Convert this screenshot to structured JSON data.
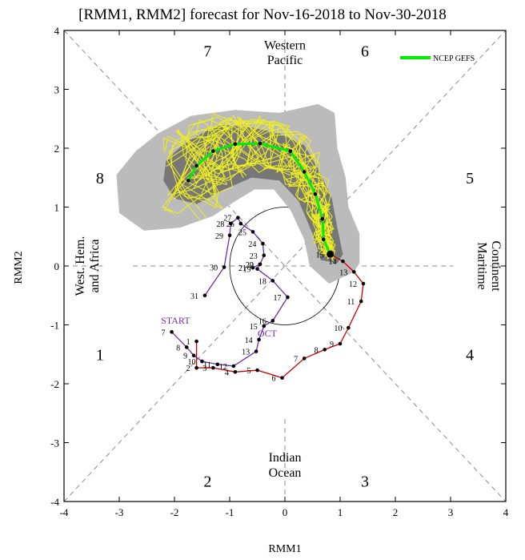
{
  "chart_data": {
    "type": "scatter",
    "title": "[RMM1, RMM2] forecast for Nov-16-2018 to Nov-30-2018",
    "xlabel": "RMM1",
    "ylabel": "RMM2",
    "xlim": [
      -4,
      4
    ],
    "ylim": [
      -4,
      4
    ],
    "x_ticks": [
      "-4",
      "-3",
      "-2",
      "-1",
      "0",
      "1",
      "2",
      "3",
      "4"
    ],
    "y_ticks": [
      "-4",
      "-3",
      "-2",
      "-1",
      "0",
      "1",
      "2",
      "3",
      "4"
    ],
    "phase_numbers": [
      {
        "label": "1",
        "x": -3.35,
        "y": -1.5
      },
      {
        "label": "2",
        "x": -1.4,
        "y": -3.65
      },
      {
        "label": "3",
        "x": 1.45,
        "y": -3.65
      },
      {
        "label": "4",
        "x": 3.35,
        "y": -1.5
      },
      {
        "label": "5",
        "x": 3.35,
        "y": 1.5
      },
      {
        "label": "6",
        "x": 1.45,
        "y": 3.65
      },
      {
        "label": "7",
        "x": -1.4,
        "y": 3.65
      },
      {
        "label": "8",
        "x": -3.35,
        "y": 1.5
      }
    ],
    "region_labels": {
      "top": [
        "Western",
        "Pacific"
      ],
      "bottom": [
        "Indian",
        "Ocean"
      ],
      "left": [
        "West. Hem.",
        "and Africa"
      ],
      "right": [
        "Maritime",
        "Continent"
      ]
    },
    "legend": {
      "label": "NCEP GEFS",
      "color": "#00ee00",
      "position": "top-right"
    },
    "start_label": "START",
    "month_labels": [
      {
        "label": "OCT",
        "x": -0.32,
        "y": -1.2
      }
    ],
    "observed_october": {
      "name": "October",
      "color": "#6a2fb0",
      "points": [
        {
          "day": "7",
          "x": -2.05,
          "y": -1.12
        },
        {
          "day": "8",
          "x": -1.78,
          "y": -1.38
        },
        {
          "day": "9",
          "x": -1.65,
          "y": -1.52
        },
        {
          "day": "10",
          "x": -1.5,
          "y": -1.62
        },
        {
          "day": "11",
          "x": -1.22,
          "y": -1.67
        },
        {
          "day": "12",
          "x": -0.93,
          "y": -1.7
        },
        {
          "day": "13",
          "x": -0.52,
          "y": -1.45
        },
        {
          "day": "14",
          "x": -0.47,
          "y": -1.25
        },
        {
          "day": "15",
          "x": -0.38,
          "y": -1.02
        },
        {
          "day": "16",
          "x": -0.22,
          "y": -0.93
        },
        {
          "day": "17",
          "x": 0.05,
          "y": -0.53
        },
        {
          "day": "18",
          "x": -0.22,
          "y": -0.25
        },
        {
          "day": "19",
          "x": -0.5,
          "y": -0.05
        },
        {
          "day": "20",
          "x": -0.45,
          "y": 0.03
        },
        {
          "day": "21",
          "x": -0.58,
          "y": -0.03
        },
        {
          "day": "22",
          "x": -0.45,
          "y": 0.03
        },
        {
          "day": "23",
          "x": -0.38,
          "y": 0.18
        },
        {
          "day": "24",
          "x": -0.4,
          "y": 0.38
        },
        {
          "day": "25",
          "x": -0.58,
          "y": 0.58
        },
        {
          "day": "26",
          "x": -0.8,
          "y": 0.72
        },
        {
          "day": "27",
          "x": -0.85,
          "y": 0.82
        },
        {
          "day": "28",
          "x": -0.98,
          "y": 0.72
        },
        {
          "day": "29",
          "x": -1.0,
          "y": 0.52
        },
        {
          "day": "30",
          "x": -1.1,
          "y": -0.02
        },
        {
          "day": "31",
          "x": -1.45,
          "y": -0.5
        }
      ]
    },
    "observed_november": {
      "name": "November",
      "color": "#cc0000",
      "points": [
        {
          "day": "1",
          "x": -1.6,
          "y": -1.28
        },
        {
          "day": "2",
          "x": -1.6,
          "y": -1.73
        },
        {
          "day": "3",
          "x": -1.3,
          "y": -1.73
        },
        {
          "day": "4",
          "x": -0.9,
          "y": -1.8
        },
        {
          "day": "5",
          "x": -0.5,
          "y": -1.77
        },
        {
          "day": "6",
          "x": -0.05,
          "y": -1.9
        },
        {
          "day": "7",
          "x": 0.35,
          "y": -1.57
        },
        {
          "day": "8",
          "x": 0.72,
          "y": -1.42
        },
        {
          "day": "9",
          "x": 1.0,
          "y": -1.32
        },
        {
          "day": "10",
          "x": 1.15,
          "y": -1.05
        },
        {
          "day": "11",
          "x": 1.38,
          "y": -0.6
        },
        {
          "day": "12",
          "x": 1.42,
          "y": -0.3
        },
        {
          "day": "13",
          "x": 1.25,
          "y": -0.1
        },
        {
          "day": "14",
          "x": 1.05,
          "y": 0.08
        },
        {
          "day": "15",
          "x": 0.82,
          "y": 0.2
        }
      ]
    },
    "ensemble_mean": {
      "name": "NCEP GEFS ensemble mean",
      "color": "#00ee00",
      "points": [
        {
          "x": 0.82,
          "y": 0.2
        },
        {
          "x": 0.7,
          "y": 0.45
        },
        {
          "x": 0.68,
          "y": 0.8
        },
        {
          "x": 0.55,
          "y": 1.22
        },
        {
          "x": 0.35,
          "y": 1.6
        },
        {
          "x": 0.1,
          "y": 1.95
        },
        {
          "x": -0.45,
          "y": 2.08
        },
        {
          "x": -0.9,
          "y": 2.07
        },
        {
          "x": -1.3,
          "y": 1.95
        },
        {
          "x": -1.6,
          "y": 1.7
        },
        {
          "x": -1.75,
          "y": 1.45
        }
      ]
    },
    "outer_spread": {
      "color": "#bbbbbb",
      "polygon": [
        [
          -3.05,
          1.55
        ],
        [
          -2.7,
          1.95
        ],
        [
          -2.3,
          2.25
        ],
        [
          -1.7,
          2.55
        ],
        [
          -0.9,
          2.65
        ],
        [
          -0.1,
          2.6
        ],
        [
          0.6,
          2.75
        ],
        [
          0.9,
          2.6
        ],
        [
          0.95,
          2.0
        ],
        [
          1.1,
          1.5
        ],
        [
          1.15,
          1.0
        ],
        [
          1.35,
          0.55
        ],
        [
          1.35,
          0.05
        ],
        [
          1.25,
          -0.1
        ],
        [
          0.8,
          -0.3
        ],
        [
          0.45,
          0.0
        ],
        [
          0.35,
          0.45
        ],
        [
          0.1,
          0.95
        ],
        [
          -0.2,
          1.3
        ],
        [
          -0.55,
          1.3
        ],
        [
          -0.9,
          1.1
        ],
        [
          -1.3,
          0.85
        ],
        [
          -1.9,
          0.65
        ],
        [
          -2.55,
          0.6
        ],
        [
          -3.0,
          0.9
        ]
      ]
    },
    "inner_spread": {
      "color": "#777777",
      "polygon": [
        [
          -2.15,
          1.8
        ],
        [
          -1.8,
          2.1
        ],
        [
          -1.2,
          2.4
        ],
        [
          -0.6,
          2.35
        ],
        [
          -0.1,
          2.25
        ],
        [
          0.35,
          2.05
        ],
        [
          0.6,
          1.65
        ],
        [
          0.85,
          1.15
        ],
        [
          0.95,
          0.65
        ],
        [
          1.05,
          0.2
        ],
        [
          0.95,
          0.05
        ],
        [
          0.65,
          0.1
        ],
        [
          0.5,
          0.55
        ],
        [
          0.25,
          1.1
        ],
        [
          -0.1,
          1.45
        ],
        [
          -0.6,
          1.5
        ],
        [
          -1.1,
          1.3
        ],
        [
          -1.6,
          1.05
        ],
        [
          -2.0,
          1.15
        ],
        [
          -2.2,
          1.45
        ]
      ]
    },
    "ensemble_members": {
      "color": "#eeee22",
      "count": 20
    }
  }
}
